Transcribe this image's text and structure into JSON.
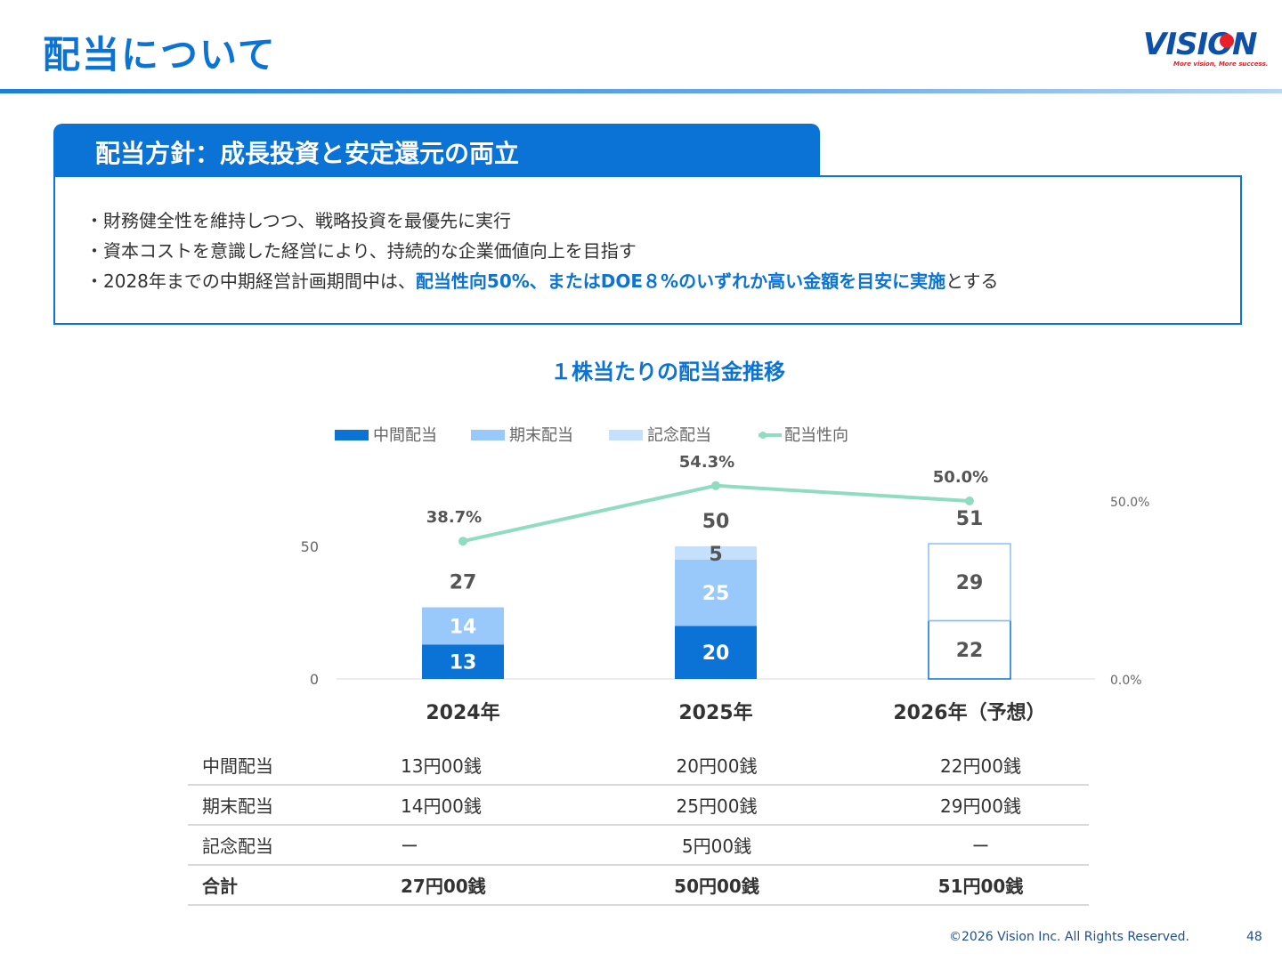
{
  "header": {
    "title": "配当について",
    "logo_text": "VISION",
    "logo_tagline": "More vision, More success."
  },
  "policy": {
    "heading": "配当方針：成長投資と安定還元の両立",
    "items": [
      "・財務健全性を維持しつつ、戦略投資を最優先に実行",
      "・資本コストを意識した経営により、持続的な企業価値向上を目指す"
    ],
    "item3_prefix": "・2028年までの中期経営計画期間中は、",
    "item3_highlight": "配当性向50%、またはDOE８%のいずれか高い金額を目安に実施",
    "item3_suffix": "とする"
  },
  "chart_title": "１株当たりの配当金推移",
  "chart_data": {
    "type": "bar",
    "categories": [
      "2024年",
      "2025年",
      "2026年（予想）"
    ],
    "series": [
      {
        "name": "中間配当",
        "values": [
          13,
          20,
          22
        ],
        "color": "#0b73d6"
      },
      {
        "name": "期末配当",
        "values": [
          14,
          25,
          29
        ],
        "color": "#99c8fa"
      },
      {
        "name": "記念配当",
        "values": [
          0,
          5,
          0
        ],
        "color": "#c4e0fc"
      }
    ],
    "totals": [
      27,
      50,
      51
    ],
    "forecast_category_index": 2,
    "line_series": {
      "name": "配当性向",
      "values": [
        38.7,
        54.3,
        50.0
      ],
      "labels": [
        "38.7%",
        "54.3%",
        "50.0%"
      ],
      "color": "#8fdcc0"
    },
    "y_left_ticks": [
      "0",
      "50"
    ],
    "y_left_range": [
      0,
      100
    ],
    "y_right_ticks": [
      "0.0%",
      "50.0%"
    ],
    "y_right_range": [
      0,
      100
    ],
    "legend_position": "top"
  },
  "table": {
    "rows": [
      {
        "label": "中間配当",
        "values": [
          "13円00銭",
          "20円00銭",
          "22円00銭"
        ]
      },
      {
        "label": "期末配当",
        "values": [
          "14円00銭",
          "25円00銭",
          "29円00銭"
        ]
      },
      {
        "label": "記念配当",
        "values": [
          "ー",
          "5円00銭",
          "ー"
        ]
      }
    ],
    "total": {
      "label": "合計",
      "values": [
        "27円00銭",
        "50円00銭",
        "51円00銭"
      ]
    }
  },
  "footer": {
    "copyright": "©2026 Vision Inc. All Rights Reserved.",
    "page": "48"
  }
}
